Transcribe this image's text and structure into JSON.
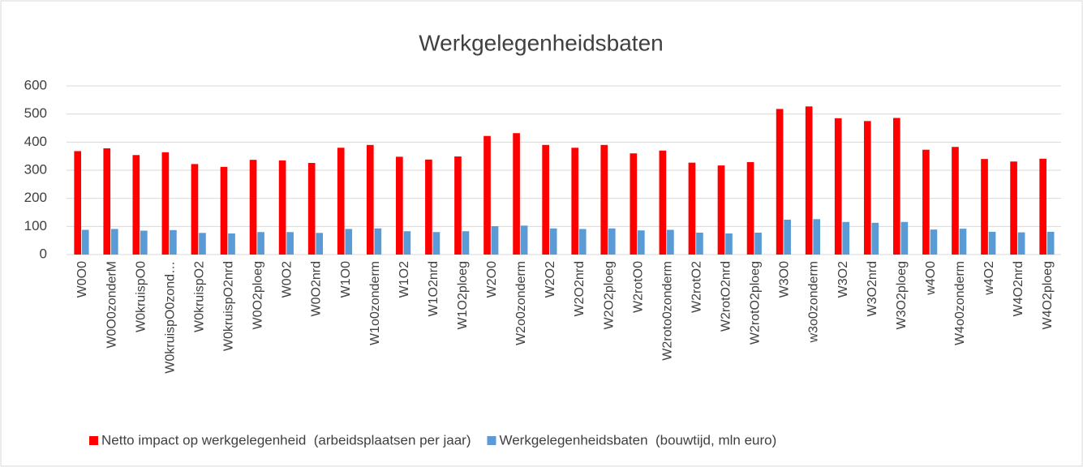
{
  "chart_data": {
    "type": "bar",
    "title": "Werkgelegenheidsbaten",
    "categories": [
      "W0O0",
      "W0O0zonderM",
      "W0kruispO0",
      "W0kruispO0zond…",
      "W0kruispO2",
      "W0kruispO2nrd",
      "W0O2ploeg",
      "W0O2",
      "W0O2nrd",
      "W1O0",
      "W1o0zonderm",
      "W1O2",
      "W1O2nrd",
      "W1O2ploeg",
      "W2O0",
      "W2o0zonderm",
      "W2O2",
      "W2O2nrd",
      "W2O2ploeg",
      "W2rotO0",
      "W2roto0zonderm",
      "W2rotO2",
      "W2rotO2nrd",
      "W2rotO2ploeg",
      "W3O0",
      "w3o0zonderm",
      "W3O2",
      "W3O2nrd",
      "W3O2ploeg",
      "w4O0",
      "W4o0zonderm",
      "w4O2",
      "W4O2nrd",
      "W4O2ploeg"
    ],
    "series": [
      {
        "name": "Netto impact op werkgelegenheid  (arbeidsplaatsen per jaar)",
        "color": "#ff0000",
        "values": [
          368,
          378,
          354,
          364,
          322,
          312,
          337,
          335,
          326,
          380,
          390,
          348,
          338,
          349,
          422,
          432,
          390,
          380,
          390,
          360,
          370,
          327,
          317,
          329,
          518,
          527,
          485,
          475,
          486,
          373,
          383,
          340,
          331,
          341
        ]
      },
      {
        "name": "Werkgelegenheidsbaten  (bouwtijd, mln euro)",
        "color": "#5b9bd5",
        "values": [
          88,
          91,
          85,
          87,
          77,
          75,
          80,
          80,
          77,
          91,
          93,
          83,
          80,
          83,
          101,
          103,
          93,
          91,
          93,
          86,
          88,
          78,
          75,
          78,
          124,
          126,
          116,
          113,
          116,
          89,
          92,
          81,
          79,
          81
        ]
      }
    ],
    "ylim": [
      0,
      600
    ],
    "yticks": [
      0,
      100,
      200,
      300,
      400,
      500,
      600
    ],
    "grid": true,
    "legend": "bottom"
  }
}
